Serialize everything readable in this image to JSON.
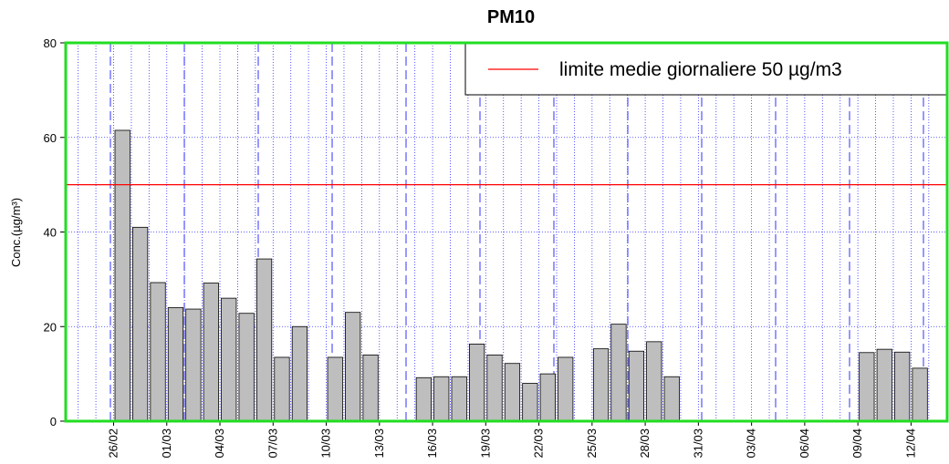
{
  "chart_data": {
    "type": "bar",
    "title": "PM10",
    "ylabel": "Conc.(µg/m³)",
    "categories": [
      "26/02",
      null,
      null,
      "01/03",
      null,
      null,
      "04/03",
      null,
      null,
      "07/03",
      null,
      null,
      "10/03",
      null,
      null,
      "13/03",
      null,
      null,
      "16/03",
      null,
      null,
      "19/03",
      null,
      null,
      "22/03",
      null,
      null,
      "25/03",
      null,
      null,
      "28/03",
      null,
      null,
      "31/03",
      null,
      null,
      "03/04",
      null,
      null,
      "06/04",
      null,
      null,
      "09/04",
      null,
      null,
      "12/04",
      null
    ],
    "values": [
      61.5,
      41,
      29.3,
      24,
      23.7,
      29.2,
      26,
      22.8,
      34.3,
      13.5,
      20,
      null,
      13.5,
      23,
      14,
      null,
      null,
      9.2,
      9.4,
      9.4,
      16.3,
      14,
      12.2,
      8,
      10,
      13.5,
      null,
      15.3,
      20.5,
      14.8,
      16.8,
      9.4,
      null,
      null,
      null,
      null,
      null,
      null,
      null,
      null,
      null,
      null,
      14.5,
      15.2,
      14.6,
      11.2,
      null
    ],
    "color": "#bebebe",
    "ylim": [
      0,
      80
    ],
    "yticks": [
      0,
      20,
      40,
      60,
      80
    ],
    "grid": true,
    "threshold": {
      "value": 50,
      "label": "limite medie giornaliere 50 µg/m3",
      "color": "#ff0000"
    },
    "legend_position": "top-right"
  }
}
